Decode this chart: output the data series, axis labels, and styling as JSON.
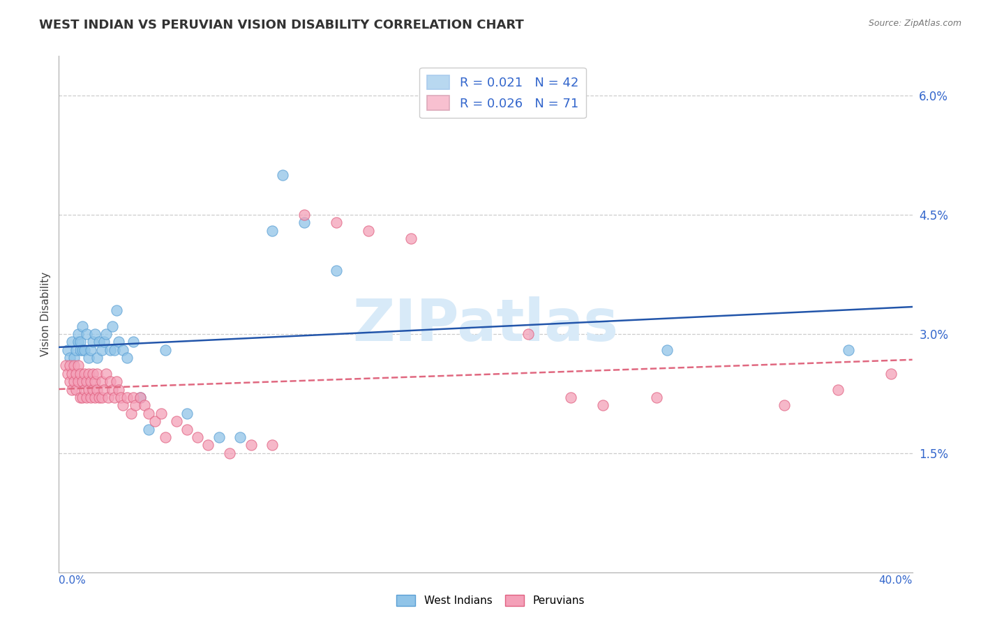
{
  "title": "WEST INDIAN VS PERUVIAN VISION DISABILITY CORRELATION CHART",
  "source": "Source: ZipAtlas.com",
  "ylabel": "Vision Disability",
  "xmin": 0.0,
  "xmax": 0.4,
  "ymin": 0.0,
  "ymax": 0.065,
  "ytick_vals": [
    0.0,
    0.015,
    0.03,
    0.045,
    0.06
  ],
  "ytick_labels": [
    "",
    "1.5%",
    "3.0%",
    "4.5%",
    "6.0%"
  ],
  "wi_color": "#90c4e8",
  "wi_edge": "#5a9fd4",
  "pe_color": "#f4a0b8",
  "pe_edge": "#e06080",
  "wi_line_color": "#2255aa",
  "pe_line_color": "#e06880",
  "leg_wi_fill": "#b8d8f0",
  "leg_pe_fill": "#f8c0d0",
  "watermark_color": "#d8eaf8",
  "wi_x": [
    0.004,
    0.005,
    0.006,
    0.007,
    0.008,
    0.009,
    0.009,
    0.01,
    0.01,
    0.011,
    0.011,
    0.012,
    0.013,
    0.014,
    0.015,
    0.016,
    0.017,
    0.018,
    0.019,
    0.02,
    0.021,
    0.022,
    0.024,
    0.025,
    0.026,
    0.027,
    0.028,
    0.03,
    0.032,
    0.035,
    0.038,
    0.042,
    0.05,
    0.06,
    0.075,
    0.085,
    0.1,
    0.105,
    0.115,
    0.13,
    0.285,
    0.37
  ],
  "wi_y": [
    0.028,
    0.027,
    0.029,
    0.027,
    0.028,
    0.029,
    0.03,
    0.028,
    0.029,
    0.028,
    0.031,
    0.028,
    0.03,
    0.027,
    0.028,
    0.029,
    0.03,
    0.027,
    0.029,
    0.028,
    0.029,
    0.03,
    0.028,
    0.031,
    0.028,
    0.033,
    0.029,
    0.028,
    0.027,
    0.029,
    0.022,
    0.018,
    0.028,
    0.02,
    0.017,
    0.017,
    0.043,
    0.05,
    0.044,
    0.038,
    0.028,
    0.028
  ],
  "pe_x": [
    0.003,
    0.004,
    0.005,
    0.005,
    0.006,
    0.006,
    0.007,
    0.007,
    0.008,
    0.008,
    0.009,
    0.009,
    0.01,
    0.01,
    0.011,
    0.011,
    0.012,
    0.012,
    0.013,
    0.013,
    0.014,
    0.014,
    0.015,
    0.015,
    0.016,
    0.016,
    0.017,
    0.017,
    0.018,
    0.018,
    0.019,
    0.02,
    0.02,
    0.021,
    0.022,
    0.023,
    0.024,
    0.025,
    0.026,
    0.027,
    0.028,
    0.029,
    0.03,
    0.032,
    0.034,
    0.035,
    0.036,
    0.038,
    0.04,
    0.042,
    0.045,
    0.048,
    0.05,
    0.055,
    0.06,
    0.065,
    0.07,
    0.08,
    0.09,
    0.1,
    0.115,
    0.13,
    0.145,
    0.165,
    0.22,
    0.24,
    0.255,
    0.28,
    0.34,
    0.365,
    0.39
  ],
  "pe_y": [
    0.026,
    0.025,
    0.026,
    0.024,
    0.025,
    0.023,
    0.026,
    0.024,
    0.025,
    0.023,
    0.026,
    0.024,
    0.025,
    0.022,
    0.024,
    0.022,
    0.025,
    0.023,
    0.024,
    0.022,
    0.025,
    0.023,
    0.024,
    0.022,
    0.025,
    0.023,
    0.024,
    0.022,
    0.025,
    0.023,
    0.022,
    0.024,
    0.022,
    0.023,
    0.025,
    0.022,
    0.024,
    0.023,
    0.022,
    0.024,
    0.023,
    0.022,
    0.021,
    0.022,
    0.02,
    0.022,
    0.021,
    0.022,
    0.021,
    0.02,
    0.019,
    0.02,
    0.017,
    0.019,
    0.018,
    0.017,
    0.016,
    0.015,
    0.016,
    0.016,
    0.045,
    0.044,
    0.043,
    0.042,
    0.03,
    0.022,
    0.021,
    0.022,
    0.021,
    0.023,
    0.025
  ]
}
